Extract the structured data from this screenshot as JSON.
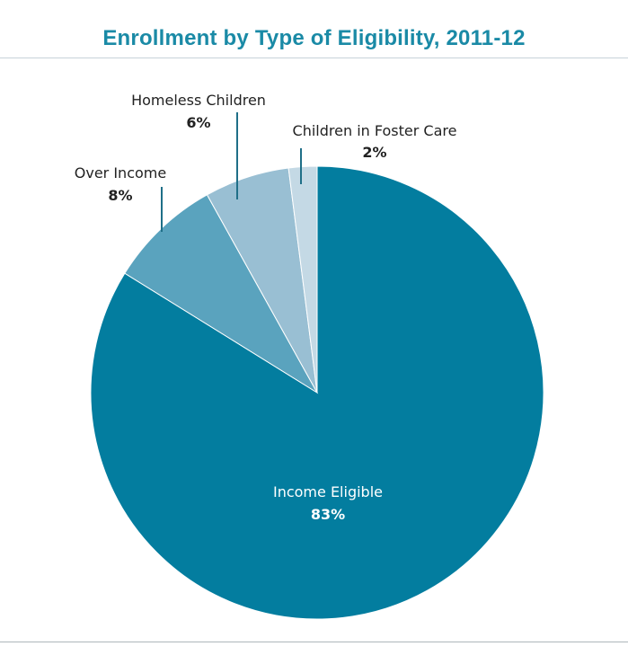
{
  "chart_data": {
    "type": "pie",
    "title": "Enrollment by Type of Eligibility, 2011-12",
    "slices": [
      {
        "label": "Income Eligible",
        "value": 83,
        "display": "83%",
        "color": "#037d9f"
      },
      {
        "label": "Over Income",
        "value": 8,
        "display": "8%",
        "color": "#5aa3be"
      },
      {
        "label": "Homeless Children",
        "value": 6,
        "display": "6%",
        "color": "#99bfd3"
      },
      {
        "label": "Children in Foster Care",
        "value": 2,
        "display": "2%",
        "color": "#c4d9e5"
      }
    ]
  }
}
